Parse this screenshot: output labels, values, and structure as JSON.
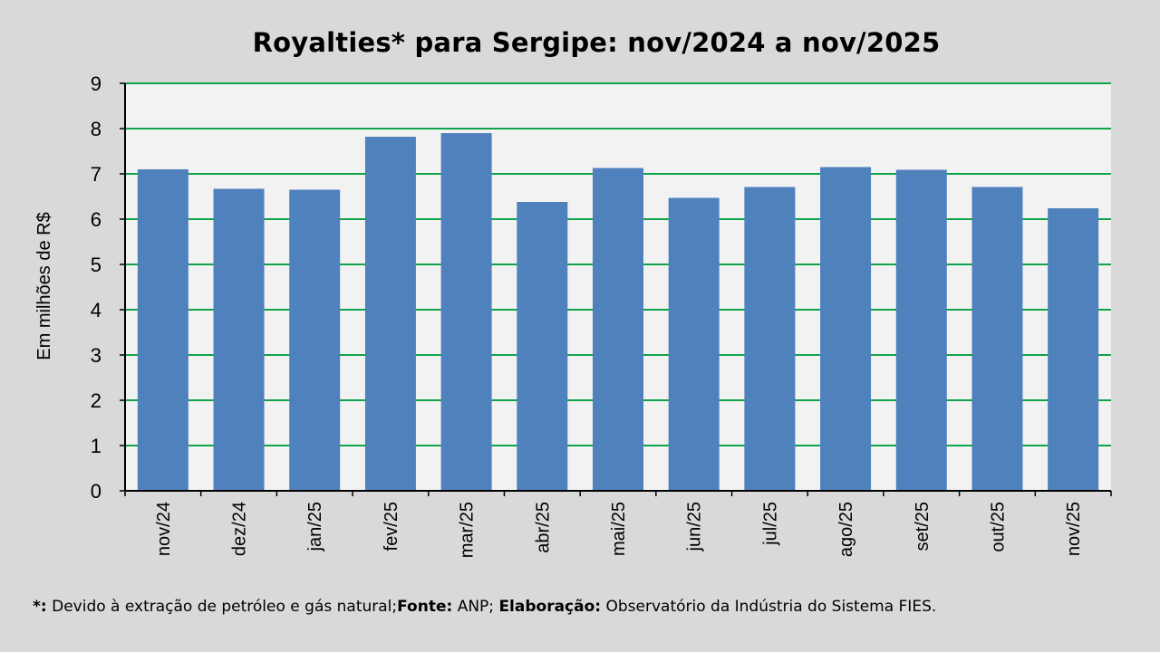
{
  "chart_data": {
    "type": "bar",
    "title": "Royalties* para Sergipe: nov/2024 a nov/2025",
    "xlabel": "",
    "ylabel": "Em milhões de R$",
    "categories": [
      "nov/24",
      "dez/24",
      "jan/25",
      "fev/25",
      "mar/25",
      "abr/25",
      "mai/25",
      "jun/25",
      "jul/25",
      "ago/25",
      "set/25",
      "out/25",
      "nov/25"
    ],
    "values": [
      7.1,
      6.67,
      6.65,
      7.82,
      7.9,
      6.38,
      7.13,
      6.47,
      6.71,
      7.15,
      7.09,
      6.71,
      6.24
    ],
    "ylim": [
      0,
      9
    ],
    "yticks": [
      "0",
      "1",
      "2",
      "3",
      "4",
      "5",
      "6",
      "7",
      "8",
      "9"
    ],
    "grid": true,
    "legend": "none"
  },
  "colors": {
    "bar": "#4f81bd",
    "gridline": "#0fa44a",
    "plot_background": "#f2f2f2",
    "page_background": "#d9d9d9"
  },
  "footnote": {
    "note_label": "*:",
    "note_text": " Devido à extração de petróleo e gás natural;",
    "source_label": "Fonte:",
    "source_text": " ANP; ",
    "elab_label": "Elaboração:",
    "elab_text": " Observatório da Indústria do Sistema FIES."
  }
}
